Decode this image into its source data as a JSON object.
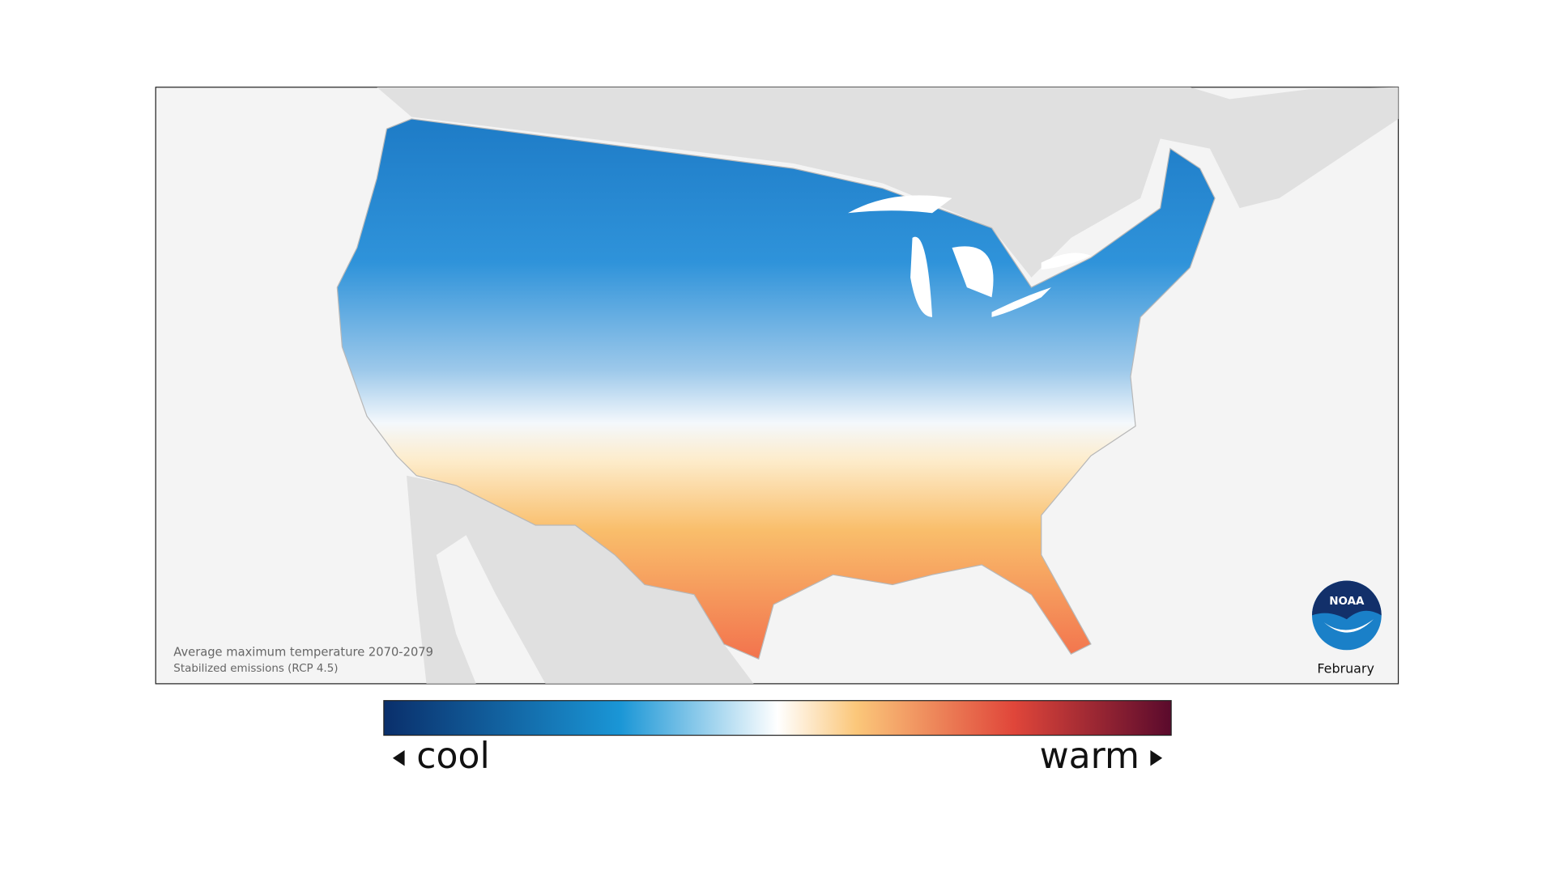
{
  "map": {
    "caption": [
      "Average maximum temperature 2070-2079",
      "Stabilized emissions (RCP 4.5)"
    ],
    "month": "February",
    "logo": "NOAA"
  },
  "legend": {
    "low": "cool",
    "high": "warm"
  }
}
